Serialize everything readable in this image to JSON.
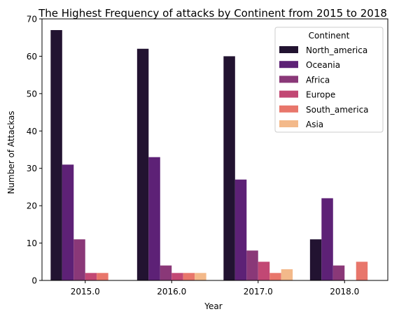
{
  "chart_data": {
    "type": "bar",
    "title": "The Highest Frequency of attacks by Continent from 2015 to 2018",
    "xlabel": "Year",
    "ylabel": "Number of Attackas",
    "categories": [
      "2015.0",
      "2016.0",
      "2017.0",
      "2018.0"
    ],
    "ylim": [
      0,
      70
    ],
    "yticks": [
      0,
      10,
      20,
      30,
      40,
      50,
      60,
      70
    ],
    "grid": false,
    "legend": {
      "title": "Continent",
      "placement": "top-right"
    },
    "series": [
      {
        "name": "North_america",
        "color": "#221331",
        "values": [
          67,
          62,
          60,
          11
        ]
      },
      {
        "name": "Oceania",
        "color": "#5d2176",
        "values": [
          31,
          33,
          27,
          22
        ]
      },
      {
        "name": "Africa",
        "color": "#8a3878",
        "values": [
          11,
          4,
          8,
          4
        ]
      },
      {
        "name": "Europe",
        "color": "#c24874",
        "values": [
          2,
          2,
          5,
          0
        ]
      },
      {
        "name": "South_america",
        "color": "#e8766b",
        "values": [
          2,
          2,
          2,
          5
        ]
      },
      {
        "name": "Asia",
        "color": "#f3b98a",
        "values": [
          0,
          2,
          3,
          0
        ]
      }
    ]
  }
}
